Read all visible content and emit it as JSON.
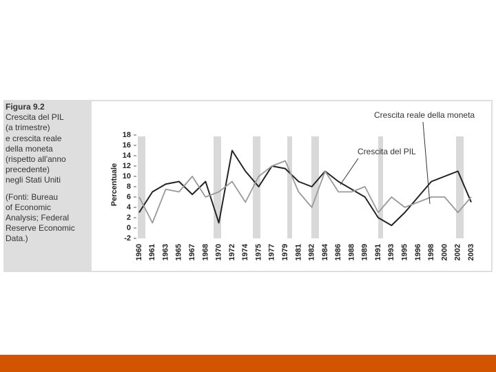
{
  "chart_data": {
    "type": "line",
    "title": "Figura 9.2",
    "caption": [
      "Crescita del PIL",
      "(a trimestre)",
      "e crescita reale",
      "della moneta",
      "(rispetto all'anno",
      "precedente)",
      "negli Stati Uniti"
    ],
    "source": [
      "(Fonti: Bureau",
      "of Economic",
      "Analysis; Federal",
      "Reserve Economic",
      "Data.)"
    ],
    "y_label": "Percentuale",
    "categories": [
      "1960",
      "1961",
      "1963",
      "1965",
      "1967",
      "1968",
      "1970",
      "1972",
      "1974",
      "1975",
      "1977",
      "1979",
      "1981",
      "1982",
      "1984",
      "1986",
      "1988",
      "1989",
      "1991",
      "1993",
      "1995",
      "1996",
      "1998",
      "2000",
      "2002",
      "2003"
    ],
    "series": [
      {
        "name": "Crescita del PIL",
        "color": "#222222",
        "values": [
          3,
          7,
          8.5,
          9,
          6.5,
          9,
          1,
          15,
          11,
          8,
          12,
          11.5,
          9,
          8,
          11,
          9,
          7.5,
          6,
          2,
          0.5,
          3,
          6,
          9,
          10,
          11,
          5
        ]
      },
      {
        "name": "Crescita reale della moneta",
        "color": "#999999",
        "values": [
          6,
          1,
          7.5,
          7,
          10,
          6,
          7,
          9,
          5,
          10,
          12,
          13,
          7,
          4,
          11,
          7,
          7,
          8,
          3,
          6,
          4,
          5,
          6,
          6,
          3,
          6
        ]
      }
    ],
    "ylim": [
      -2,
      18
    ],
    "yticks": [
      -2,
      0,
      2,
      4,
      6,
      8,
      10,
      12,
      14,
      16,
      18
    ]
  }
}
